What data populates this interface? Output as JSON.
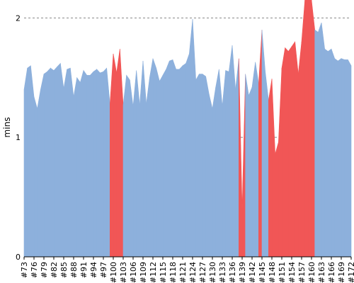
{
  "chart_data": {
    "type": "area",
    "title": "",
    "xlabel": "",
    "ylabel": "mins",
    "ylim": [
      0,
      2.15
    ],
    "yticks": [
      0,
      1,
      2
    ],
    "grid": true,
    "colors": {
      "normal": "#8db0dc",
      "highlight": "#f15656"
    },
    "xticks": [
      "#73",
      "#76",
      "#79",
      "#82",
      "#85",
      "#88",
      "#91",
      "#94",
      "#97",
      "#100",
      "#103",
      "#106",
      "#109",
      "#112",
      "#115",
      "#118",
      "#121",
      "#124",
      "#127",
      "#130",
      "#133",
      "#136",
      "#139",
      "#142",
      "#145",
      "#148",
      "#151",
      "#154",
      "#157",
      "#160",
      "#163",
      "#166",
      "#169",
      "#172"
    ],
    "x": [
      73,
      74,
      75,
      76,
      77,
      78,
      79,
      80,
      81,
      82,
      83,
      84,
      85,
      86,
      87,
      88,
      89,
      90,
      91,
      92,
      93,
      94,
      95,
      96,
      97,
      98,
      99,
      100,
      101,
      102,
      103,
      104,
      105,
      106,
      107,
      108,
      109,
      110,
      111,
      112,
      113,
      114,
      115,
      116,
      117,
      118,
      119,
      120,
      121,
      122,
      123,
      124,
      125,
      126,
      127,
      128,
      129,
      130,
      131,
      132,
      133,
      134,
      135,
      136,
      137,
      138,
      139,
      140,
      141,
      142,
      143,
      144,
      145,
      146,
      147,
      148,
      149,
      150,
      151,
      152,
      153,
      154,
      155,
      156,
      157,
      158,
      159,
      160,
      161,
      162,
      163,
      164,
      165,
      166,
      167,
      168,
      169,
      170,
      171,
      172
    ],
    "values": [
      1.4,
      1.58,
      1.6,
      1.34,
      1.24,
      1.4,
      1.53,
      1.55,
      1.58,
      1.56,
      1.59,
      1.62,
      1.41,
      1.57,
      1.58,
      1.34,
      1.5,
      1.46,
      1.56,
      1.52,
      1.52,
      1.55,
      1.57,
      1.54,
      1.55,
      1.58,
      1.28,
      1.7,
      1.54,
      1.74,
      1.27,
      1.52,
      1.48,
      1.26,
      1.56,
      1.27,
      1.64,
      1.28,
      1.5,
      1.66,
      1.58,
      1.47,
      1.52,
      1.57,
      1.64,
      1.65,
      1.57,
      1.57,
      1.6,
      1.62,
      1.7,
      1.99,
      1.48,
      1.53,
      1.53,
      1.51,
      1.36,
      1.24,
      1.42,
      1.57,
      1.26,
      1.56,
      1.55,
      1.77,
      1.4,
      1.66,
      0.4,
      1.53,
      1.35,
      1.42,
      1.63,
      1.45,
      1.9,
      1.55,
      1.31,
      1.49,
      0.86,
      0.96,
      1.58,
      1.75,
      1.72,
      1.76,
      1.8,
      1.53,
      1.8,
      2.15,
      2.15,
      2.15,
      1.9,
      1.88,
      1.96,
      1.74,
      1.72,
      1.74,
      1.66,
      1.64,
      1.66,
      1.65,
      1.65,
      1.6
    ],
    "highlight": [
      false,
      false,
      false,
      false,
      false,
      false,
      false,
      false,
      false,
      false,
      false,
      false,
      false,
      false,
      false,
      false,
      false,
      false,
      false,
      false,
      false,
      false,
      false,
      false,
      false,
      false,
      true,
      true,
      true,
      true,
      false,
      false,
      false,
      false,
      false,
      false,
      false,
      false,
      false,
      false,
      false,
      false,
      false,
      false,
      false,
      false,
      false,
      false,
      false,
      false,
      false,
      false,
      false,
      false,
      false,
      false,
      false,
      false,
      false,
      false,
      false,
      false,
      false,
      false,
      false,
      true,
      true,
      false,
      false,
      false,
      false,
      true,
      false,
      false,
      true,
      true,
      true,
      true,
      true,
      true,
      true,
      true,
      true,
      true,
      true,
      true,
      true,
      true,
      false,
      false,
      false,
      false,
      false,
      false,
      false,
      false,
      false,
      false,
      false,
      false
    ]
  }
}
